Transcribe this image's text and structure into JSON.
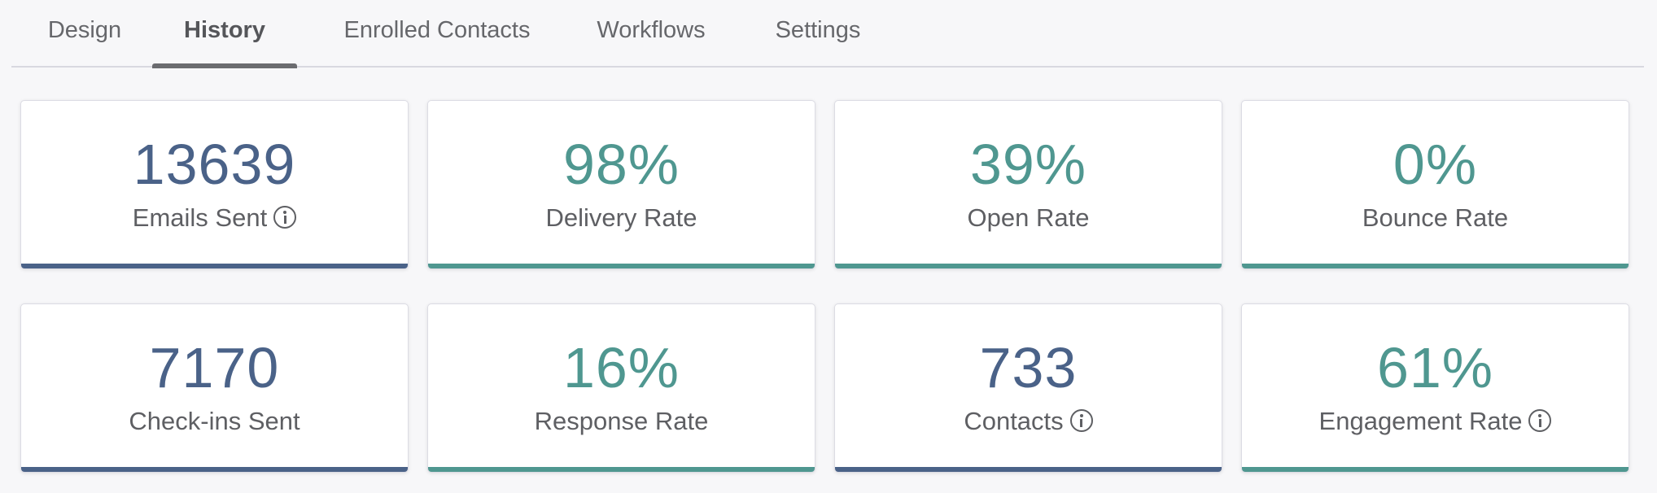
{
  "tabs": [
    {
      "label": "Design"
    },
    {
      "label": "History"
    },
    {
      "label": "Enrolled Contacts"
    },
    {
      "label": "Workflows"
    },
    {
      "label": "Settings"
    }
  ],
  "active_tab": "History",
  "stats": [
    {
      "value": "13639",
      "label": "Emails Sent",
      "info": true,
      "color": "#4a6288"
    },
    {
      "value": "98%",
      "label": "Delivery Rate",
      "info": false,
      "color": "#4f9790"
    },
    {
      "value": "39%",
      "label": "Open Rate",
      "info": false,
      "color": "#4f9790"
    },
    {
      "value": "0%",
      "label": "Bounce Rate",
      "info": false,
      "color": "#4f9790"
    },
    {
      "value": "7170",
      "label": "Check-ins Sent",
      "info": false,
      "color": "#4a6288"
    },
    {
      "value": "16%",
      "label": "Response Rate",
      "info": false,
      "color": "#4f9790"
    },
    {
      "value": "733",
      "label": "Contacts",
      "info": true,
      "color": "#4a6288"
    },
    {
      "value": "61%",
      "label": "Engagement Rate",
      "info": true,
      "color": "#4f9790"
    }
  ],
  "icons": {
    "info": "info-circle-icon"
  },
  "colors": {
    "blue_accent": "#4a6288",
    "teal_accent": "#4f9790",
    "background": "#f7f7f9"
  }
}
